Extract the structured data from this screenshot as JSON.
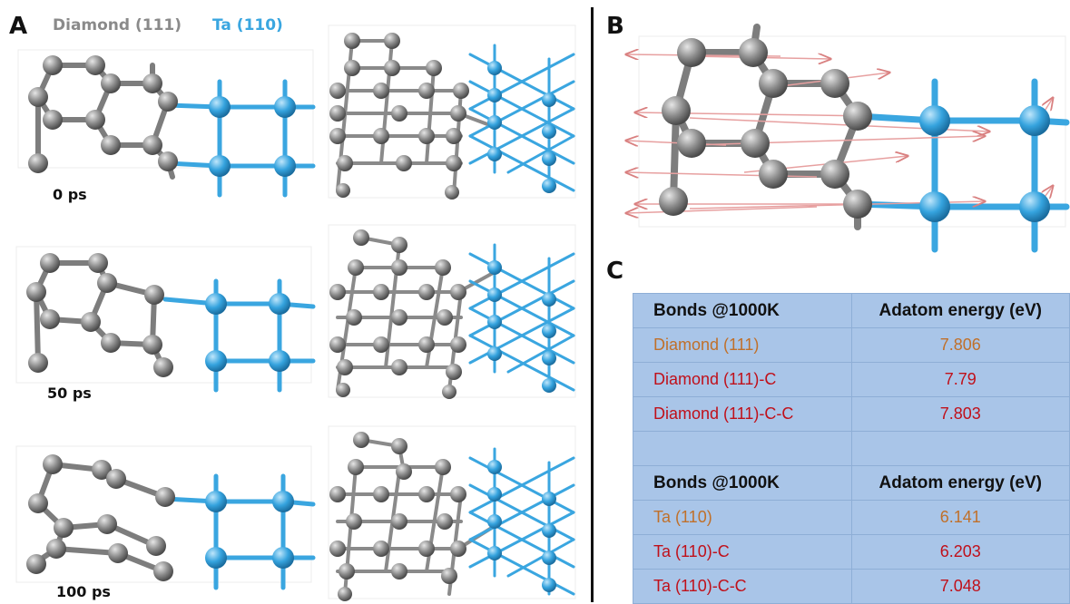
{
  "panels": {
    "a": "A",
    "b": "B",
    "c": "C"
  },
  "legend": {
    "diamond": "Diamond (111)",
    "ta": "Ta (110)",
    "diamond_color": "#8a8a8a",
    "ta_color": "#3aa6e0"
  },
  "times": [
    "0 ps",
    "50 ps",
    "100 ps"
  ],
  "table1": {
    "header": [
      "Bonds @1000K",
      "Adatom energy (eV)"
    ],
    "rows": [
      {
        "label": "Diamond (111)",
        "value": "7.806",
        "color": "orange"
      },
      {
        "label": "Diamond (111)-C",
        "value": "7.79",
        "color": "red"
      },
      {
        "label": "Diamond (111)-C-C",
        "value": "7.803",
        "color": "red"
      }
    ]
  },
  "table2": {
    "header": [
      "Bonds @1000K",
      "Adatom energy (eV)"
    ],
    "rows": [
      {
        "label": "Ta (110)",
        "value": "6.141",
        "color": "orange"
      },
      {
        "label": "Ta (110)-C",
        "value": "6.203",
        "color": "red"
      },
      {
        "label": "Ta (110)-C-C",
        "value": "7.048",
        "color": "red"
      }
    ]
  },
  "colors": {
    "carbon": "#8c8c8c",
    "tantalum": "#35a3de",
    "bond_blue": "#4fb6ea",
    "arrow": "#e8a0a0",
    "table_bg": "#a9c5e8"
  }
}
